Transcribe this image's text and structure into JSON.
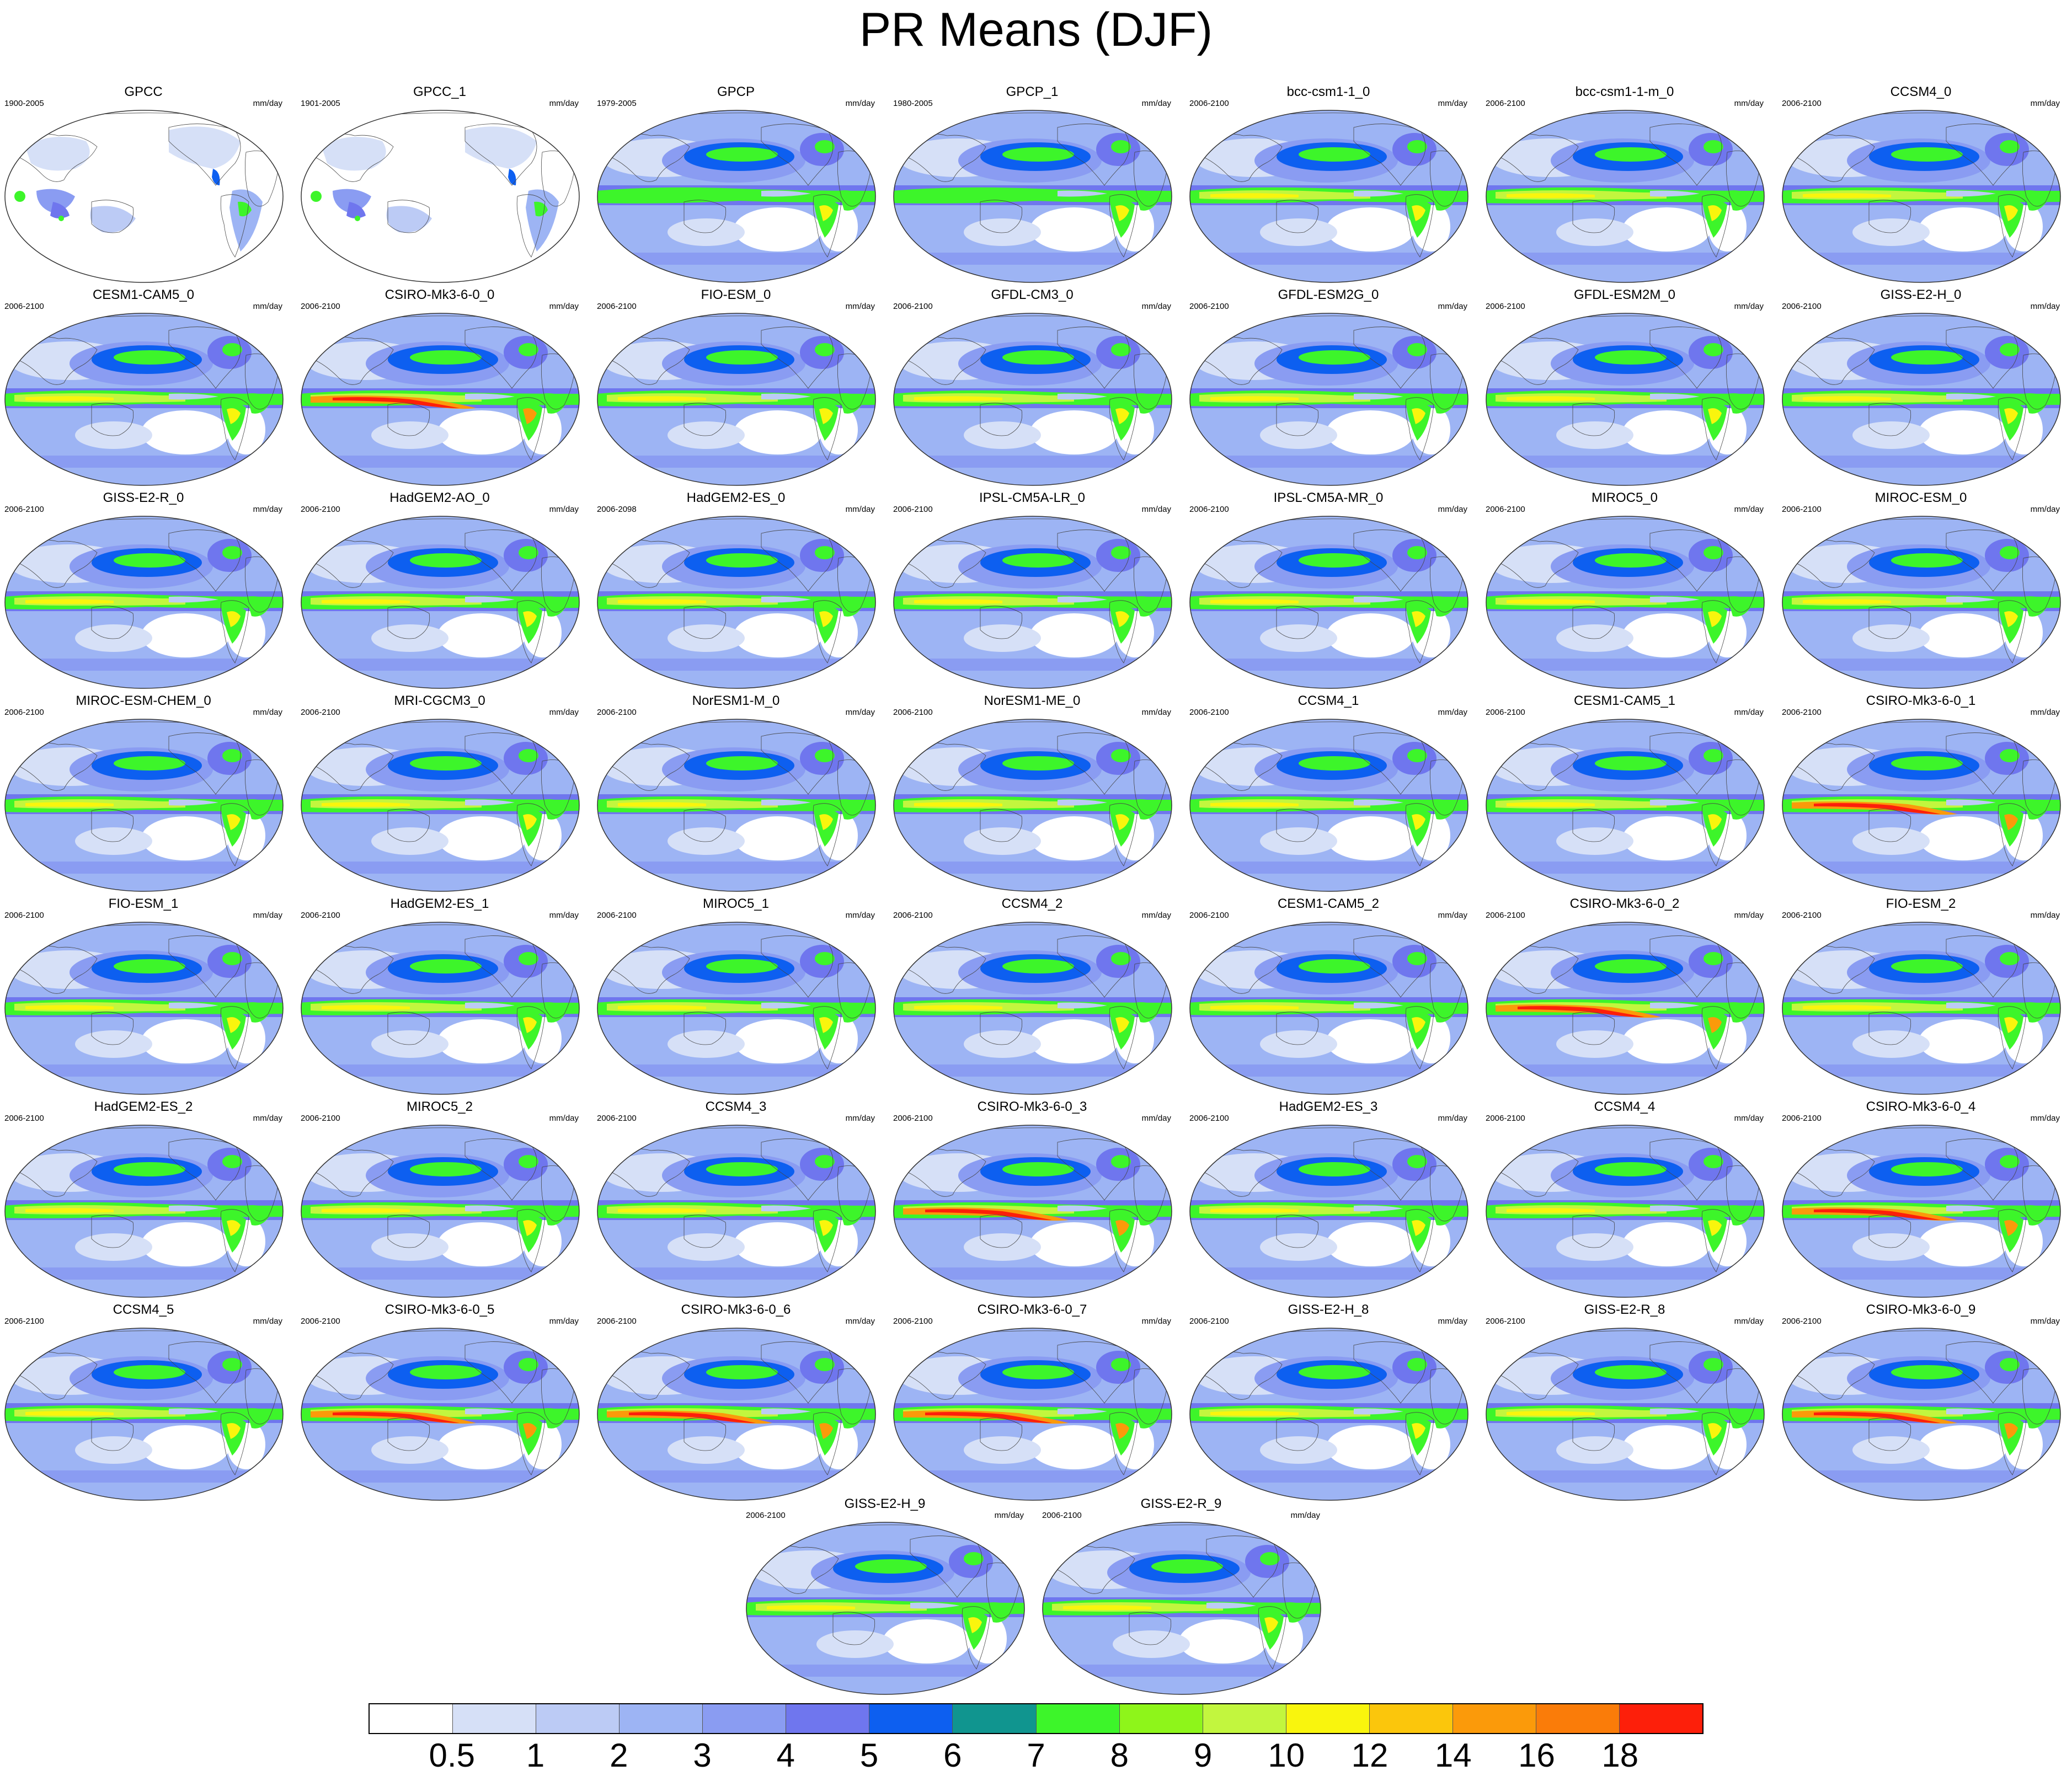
{
  "title": "PR Means (DJF)",
  "units": "mm/day",
  "panels": [
    {
      "name": "GPCC",
      "period": "1900-2005",
      "style": "obs-land"
    },
    {
      "name": "GPCC_1",
      "period": "1901-2005",
      "style": "obs-land"
    },
    {
      "name": "GPCP",
      "period": "1979-2005",
      "style": "obs"
    },
    {
      "name": "GPCP_1",
      "period": "1980-2005",
      "style": "obs"
    },
    {
      "name": "bcc-csm1-1_0",
      "period": "2006-2100",
      "style": "model"
    },
    {
      "name": "bcc-csm1-1-m_0",
      "period": "2006-2100",
      "style": "model"
    },
    {
      "name": "CCSM4_0",
      "period": "2006-2100",
      "style": "model"
    },
    {
      "name": "CESM1-CAM5_0",
      "period": "2006-2100",
      "style": "model"
    },
    {
      "name": "CSIRO-Mk3-6-0_0",
      "period": "2006-2100",
      "style": "model-intense"
    },
    {
      "name": "FIO-ESM_0",
      "period": "2006-2100",
      "style": "model"
    },
    {
      "name": "GFDL-CM3_0",
      "period": "2006-2100",
      "style": "model"
    },
    {
      "name": "GFDL-ESM2G_0",
      "period": "2006-2100",
      "style": "model"
    },
    {
      "name": "GFDL-ESM2M_0",
      "period": "2006-2100",
      "style": "model"
    },
    {
      "name": "GISS-E2-H_0",
      "period": "2006-2100",
      "style": "model"
    },
    {
      "name": "GISS-E2-R_0",
      "period": "2006-2100",
      "style": "model"
    },
    {
      "name": "HadGEM2-AO_0",
      "period": "2006-2100",
      "style": "model"
    },
    {
      "name": "HadGEM2-ES_0",
      "period": "2006-2098",
      "style": "model"
    },
    {
      "name": "IPSL-CM5A-LR_0",
      "period": "2006-2100",
      "style": "model"
    },
    {
      "name": "IPSL-CM5A-MR_0",
      "period": "2006-2100",
      "style": "model"
    },
    {
      "name": "MIROC5_0",
      "period": "2006-2100",
      "style": "model"
    },
    {
      "name": "MIROC-ESM_0",
      "period": "2006-2100",
      "style": "model"
    },
    {
      "name": "MIROC-ESM-CHEM_0",
      "period": "2006-2100",
      "style": "model"
    },
    {
      "name": "MRI-CGCM3_0",
      "period": "2006-2100",
      "style": "model"
    },
    {
      "name": "NorESM1-M_0",
      "period": "2006-2100",
      "style": "model"
    },
    {
      "name": "NorESM1-ME_0",
      "period": "2006-2100",
      "style": "model"
    },
    {
      "name": "CCSM4_1",
      "period": "2006-2100",
      "style": "model"
    },
    {
      "name": "CESM1-CAM5_1",
      "period": "2006-2100",
      "style": "model"
    },
    {
      "name": "CSIRO-Mk3-6-0_1",
      "period": "2006-2100",
      "style": "model-intense"
    },
    {
      "name": "FIO-ESM_1",
      "period": "2006-2100",
      "style": "model"
    },
    {
      "name": "HadGEM2-ES_1",
      "period": "2006-2100",
      "style": "model"
    },
    {
      "name": "MIROC5_1",
      "period": "2006-2100",
      "style": "model"
    },
    {
      "name": "CCSM4_2",
      "period": "2006-2100",
      "style": "model"
    },
    {
      "name": "CESM1-CAM5_2",
      "period": "2006-2100",
      "style": "model"
    },
    {
      "name": "CSIRO-Mk3-6-0_2",
      "period": "2006-2100",
      "style": "model-intense"
    },
    {
      "name": "FIO-ESM_2",
      "period": "2006-2100",
      "style": "model"
    },
    {
      "name": "HadGEM2-ES_2",
      "period": "2006-2100",
      "style": "model"
    },
    {
      "name": "MIROC5_2",
      "period": "2006-2100",
      "style": "model"
    },
    {
      "name": "CCSM4_3",
      "period": "2006-2100",
      "style": "model"
    },
    {
      "name": "CSIRO-Mk3-6-0_3",
      "period": "2006-2100",
      "style": "model-intense"
    },
    {
      "name": "HadGEM2-ES_3",
      "period": "2006-2100",
      "style": "model"
    },
    {
      "name": "CCSM4_4",
      "period": "2006-2100",
      "style": "model"
    },
    {
      "name": "CSIRO-Mk3-6-0_4",
      "period": "2006-2100",
      "style": "model-intense"
    },
    {
      "name": "CCSM4_5",
      "period": "2006-2100",
      "style": "model"
    },
    {
      "name": "CSIRO-Mk3-6-0_5",
      "period": "2006-2100",
      "style": "model-intense"
    },
    {
      "name": "CSIRO-Mk3-6-0_6",
      "period": "2006-2100",
      "style": "model-intense"
    },
    {
      "name": "CSIRO-Mk3-6-0_7",
      "period": "2006-2100",
      "style": "model-intense"
    },
    {
      "name": "GISS-E2-H_8",
      "period": "2006-2100",
      "style": "model"
    },
    {
      "name": "GISS-E2-R_8",
      "period": "2006-2100",
      "style": "model"
    },
    {
      "name": "CSIRO-Mk3-6-0_9",
      "period": "2006-2100",
      "style": "model-intense"
    },
    {
      "name": "GISS-E2-H_9",
      "period": "2006-2100",
      "style": "model"
    },
    {
      "name": "GISS-E2-R_9",
      "period": "2006-2100",
      "style": "model"
    }
  ],
  "colorbar": {
    "colors": [
      "#ffffff",
      "#d6e0f7",
      "#bccbf5",
      "#9db4f4",
      "#8a9cf2",
      "#6f76ee",
      "#0d5ff0",
      "#10958f",
      "#3df52a",
      "#8ef51a",
      "#c2f63e",
      "#f9f50d",
      "#fbc60c",
      "#fb9a0a",
      "#fa7c09",
      "#fd1f0a"
    ],
    "labels": [
      "0.5",
      "1",
      "2",
      "3",
      "4",
      "5",
      "6",
      "7",
      "8",
      "9",
      "10",
      "12",
      "14",
      "16",
      "18"
    ]
  }
}
